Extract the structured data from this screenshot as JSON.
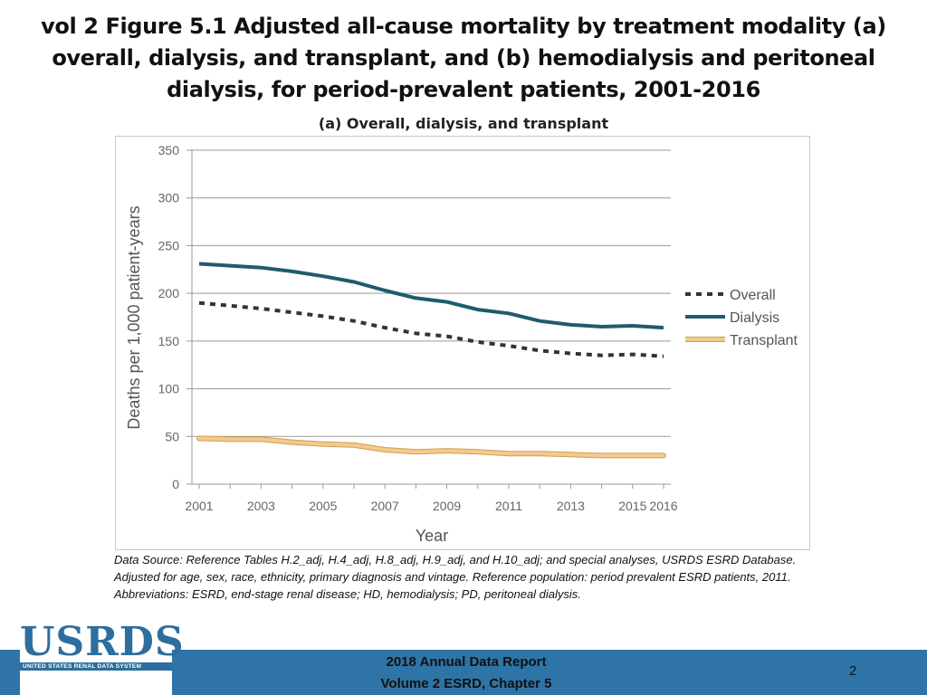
{
  "slide_title": "vol 2 Figure 5.1 Adjusted all-cause mortality by treatment modality (a) overall, dialysis, and transplant, and (b) hemodialysis and peritoneal dialysis, for period-prevalent patients, 2001-2016",
  "footnote": "Data Source: Reference Tables H.2_adj, H.4_adj, H.8_adj, H.9_adj, and H.10_adj; and special analyses, USRDS ESRD Database. Adjusted for age, sex, race, ethnicity, primary diagnosis and vintage. Reference population: period prevalent ESRD patients, 2011. Abbreviations: ESRD, end-stage renal disease; HD, hemodialysis; PD, peritoneal dialysis.",
  "logo": {
    "name": "USRDS",
    "subtitle": "UNITED STATES RENAL DATA SYSTEM"
  },
  "footer": {
    "line1": "2018 Annual Data Report",
    "line2": "Volume 2 ESRD, Chapter 5",
    "page_number": "2"
  },
  "colors": {
    "overall": "#333333",
    "dialysis": "#1f5c6b",
    "transplant": "#f5c98a",
    "transplant_edge": "#c9a05a",
    "footer_band": "#2e74a6"
  },
  "chart_data": {
    "type": "line",
    "title": "(a) Overall, dialysis, and transplant",
    "xlabel": "Year",
    "ylabel": "Deaths per 1,000 patient-years",
    "x": [
      2001,
      2002,
      2003,
      2004,
      2005,
      2006,
      2007,
      2008,
      2009,
      2010,
      2011,
      2012,
      2013,
      2014,
      2015,
      2016
    ],
    "xticks": [
      "2001",
      "2003",
      "2005",
      "2007",
      "2009",
      "2011",
      "2013",
      "2015",
      "2016"
    ],
    "xtick_values": [
      2001,
      2003,
      2005,
      2007,
      2009,
      2011,
      2013,
      2015,
      2016
    ],
    "ylim": [
      0,
      350
    ],
    "yticks": [
      0,
      50,
      100,
      150,
      200,
      250,
      300,
      350
    ],
    "grid": true,
    "legend_position": "right",
    "series": [
      {
        "name": "Overall",
        "style": "dashed",
        "values": [
          190,
          187,
          184,
          180,
          176,
          171,
          164,
          158,
          155,
          149,
          145,
          140,
          137,
          135,
          136,
          134
        ]
      },
      {
        "name": "Dialysis",
        "style": "solid",
        "values": [
          231,
          229,
          227,
          223,
          218,
          212,
          203,
          195,
          191,
          183,
          179,
          171,
          167,
          165,
          166,
          164
        ]
      },
      {
        "name": "Transplant",
        "style": "band",
        "values": [
          48,
          47,
          47,
          44,
          42,
          41,
          36,
          34,
          35,
          34,
          32,
          32,
          31,
          30,
          30,
          30
        ]
      }
    ]
  }
}
